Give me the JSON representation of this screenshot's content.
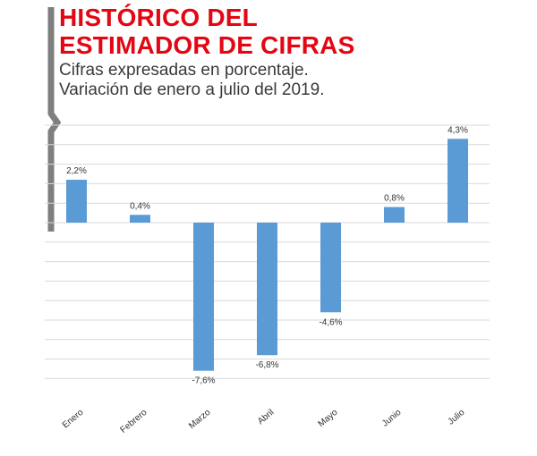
{
  "header": {
    "title_line1": "HISTÓRICO DEL",
    "title_line2": "ESTIMADOR DE CIFRAS",
    "subtitle_line1": "Cifras expresadas en porcentaje.",
    "subtitle_line2": "Variación de enero a julio del 2019."
  },
  "colors": {
    "title": "#e30613",
    "bar": "#5b9bd5",
    "grid": "#d9d9d9",
    "accent_bar": "#7f7f7f"
  },
  "chart_data": {
    "type": "bar",
    "title": "HISTÓRICO DEL ESTIMADOR DE CIFRAS",
    "subtitle": "Cifras expresadas en porcentaje. Variación de enero a julio del 2019.",
    "xlabel": "",
    "ylabel": "",
    "categories": [
      "Enero",
      "Febrero",
      "Marzo",
      "Abril",
      "Mayo",
      "Junio",
      "Julio"
    ],
    "values": [
      2.2,
      0.4,
      -7.6,
      -6.8,
      -4.6,
      0.8,
      4.3
    ],
    "value_labels": [
      "2,2%",
      "0,4%",
      "-7,6%",
      "-6,8%",
      "-4,6%",
      "0,8%",
      "4,3%"
    ],
    "ylim": [
      -8,
      5
    ],
    "y_grid_step": 1,
    "grid": true,
    "legend": "none"
  }
}
